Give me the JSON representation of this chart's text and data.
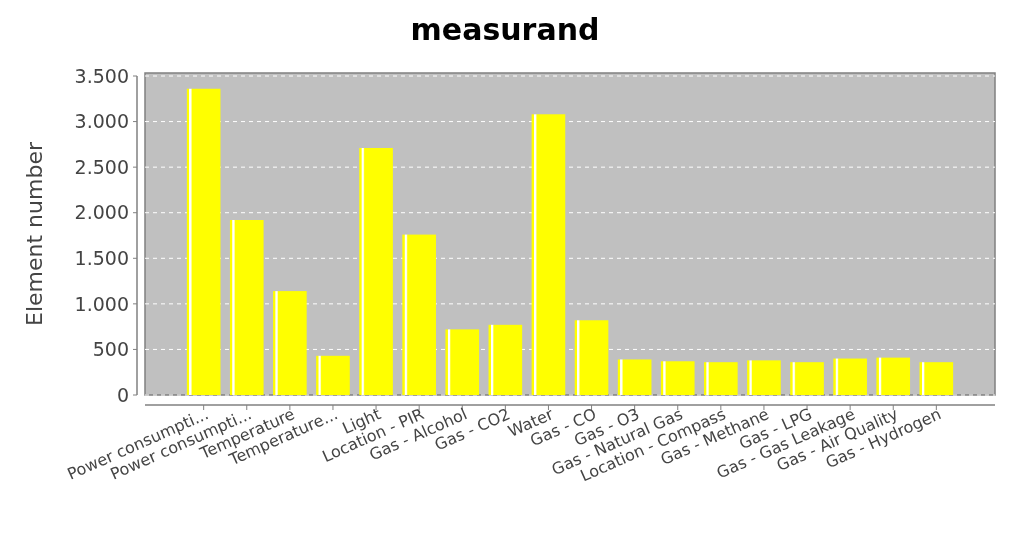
{
  "chart_data": {
    "type": "bar",
    "title": "measurand",
    "ylabel": "Element number",
    "categories": [
      "Power consumpti...",
      "Power consumpti...",
      "Temperature",
      "Temperature...",
      "Light",
      "Location - PIR",
      "Gas - Alcohol",
      "Gas - CO2",
      "Water",
      "Gas - CO",
      "Gas - O3",
      "Gas - Natural Gas",
      "Location - Compass",
      "Gas - Methane",
      "Gas - LPG",
      "Gas - Gas Leakage",
      "Gas - Air Quality",
      "Gas - Hydrogen"
    ],
    "values": [
      3360,
      1920,
      1140,
      430,
      2710,
      1760,
      720,
      770,
      3080,
      820,
      390,
      370,
      360,
      380,
      360,
      400,
      410,
      360
    ],
    "color": "#ffff00",
    "ylim": [
      0,
      3500
    ],
    "yticks": [
      {
        "value": 0,
        "label": "0"
      },
      {
        "value": 500,
        "label": "500"
      },
      {
        "value": 1000,
        "label": "1.000"
      },
      {
        "value": 1500,
        "label": "1.500"
      },
      {
        "value": 2000,
        "label": "2.000"
      },
      {
        "value": 2500,
        "label": "2.500"
      },
      {
        "value": 3000,
        "label": "3.000"
      },
      {
        "value": 3500,
        "label": "3.500"
      }
    ],
    "grid": "y"
  }
}
